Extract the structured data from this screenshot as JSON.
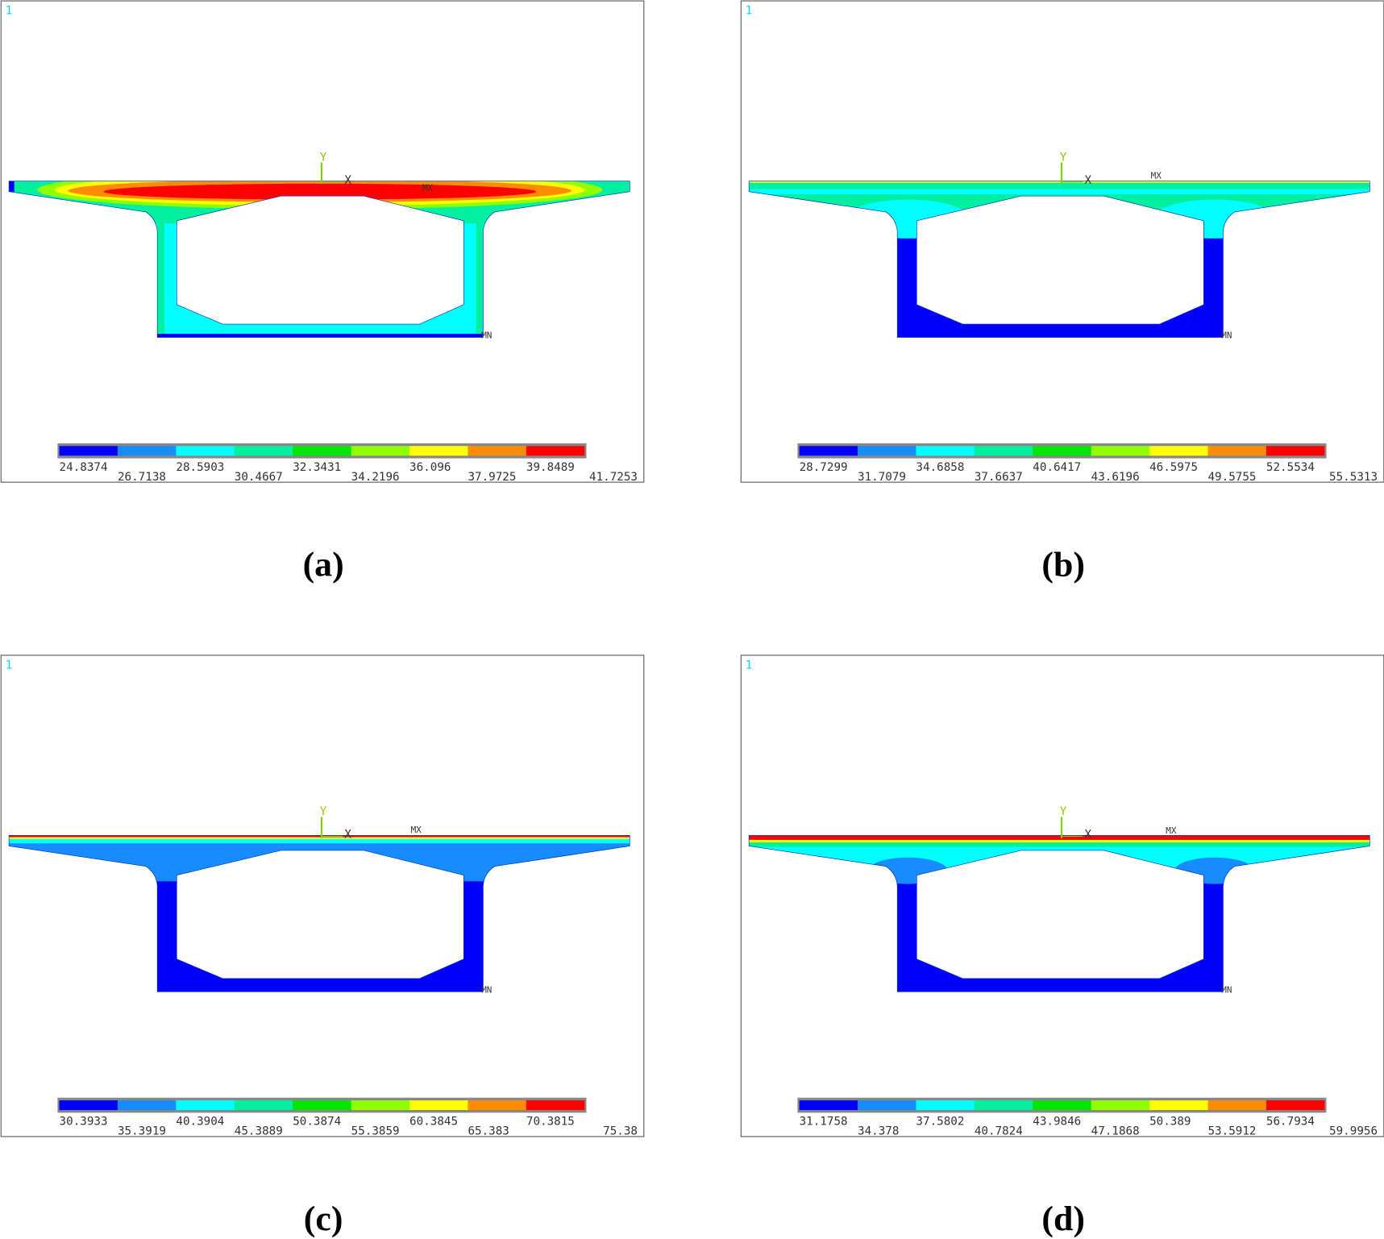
{
  "panels": [
    {
      "corner": "1",
      "y_axis": "Y",
      "x_axis": "X",
      "max_label": "MX",
      "min_label": "MN",
      "legend_ticks": [
        "24.8374",
        "26.7138",
        "28.5903",
        "30.4667",
        "32.3431",
        "34.2196",
        "36.096",
        "37.9725",
        "39.8489",
        "41.7253"
      ],
      "caption": "(a)"
    },
    {
      "corner": "1",
      "y_axis": "Y",
      "x_axis": "X",
      "max_label": "MX",
      "min_label": "MN",
      "legend_ticks": [
        "28.7299",
        "31.7079",
        "34.6858",
        "37.6637",
        "40.6417",
        "43.6196",
        "46.5975",
        "49.5755",
        "52.5534",
        "55.5313"
      ],
      "caption": "(b)"
    },
    {
      "corner": "1",
      "y_axis": "Y",
      "x_axis": "X",
      "max_label": "MX",
      "min_label": "MN",
      "legend_ticks": [
        "30.3933",
        "35.3919",
        "40.3904",
        "45.3889",
        "50.3874",
        "55.3859",
        "60.3845",
        "65.383",
        "70.3815",
        "75.38"
      ],
      "caption": "(c)"
    },
    {
      "corner": "1",
      "y_axis": "Y",
      "x_axis": "X",
      "max_label": "MX",
      "min_label": "MN",
      "legend_ticks": [
        "31.1758",
        "34.378",
        "37.5802",
        "40.7824",
        "43.9846",
        "47.1868",
        "50.389",
        "53.5912",
        "56.7934",
        "59.9956"
      ],
      "caption": "(d)"
    }
  ]
}
